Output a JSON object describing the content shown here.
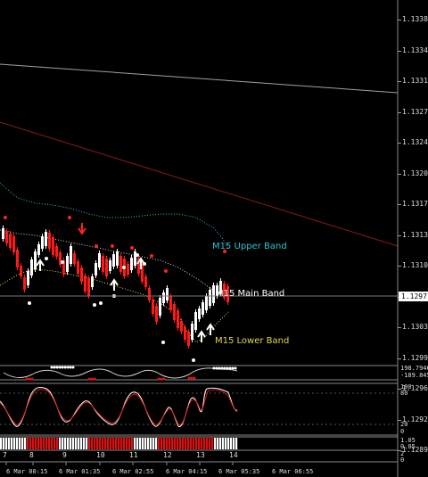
{
  "price_axis": [
    "1.13380",
    "1.13345",
    "1.13310",
    "1.13275",
    "1.13240",
    "1.13205",
    "1.13170",
    "1.13135",
    "1.13100",
    "1.13065",
    "1.13030",
    "1.12995",
    "1.12960",
    "1.12925",
    "1.12890"
  ],
  "current_price": "1.12971",
  "band_labels": {
    "upper": "M15 Upper Band",
    "main": "M15 Main Band",
    "lower": "M15 Lower Band"
  },
  "band_colors": {
    "upper": "#2bc4cf",
    "main": "#ffffff",
    "lower": "#e6d44a"
  },
  "day_labels": [
    "7",
    "8",
    "9",
    "10",
    "11",
    "12",
    "13",
    "14"
  ],
  "time_labels": [
    "6 Mar 00:15",
    "6 Mar 01:35",
    "6 Mar 02:55",
    "6 Mar 04:15",
    "6 Mar 05:35",
    "6 Mar 06:55"
  ],
  "sub1_axis": [
    "198.7946",
    "-189.8456"
  ],
  "sub2_axis": [
    "100",
    "80",
    "20",
    "0"
  ],
  "sub3_axis": [
    "1.05",
    "0.05",
    "2",
    "0"
  ],
  "colors": {
    "bull": "#ffffff",
    "bear": "#ff1a1a",
    "signal_dot": "#ff2020",
    "trend_gray": "#9a9a9a",
    "trend_red": "#8b1a1a"
  }
}
